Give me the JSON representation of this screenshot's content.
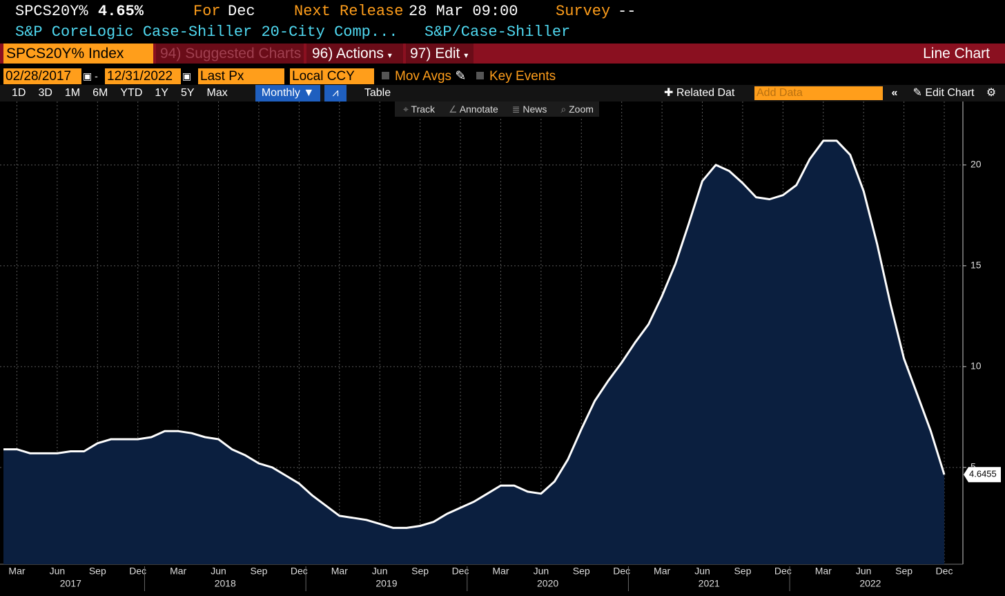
{
  "header": {
    "ticker": "SPCS20Y%",
    "last": "4.65%",
    "for_label": "For",
    "for_value": "Dec",
    "next_label": "Next Release",
    "next_value": "28 Mar 09:00",
    "survey_label": "Survey",
    "survey_value": "--",
    "name": "S&P CoreLogic Case-Shiller 20-City Comp...",
    "source": "S&P/Case-Shiller"
  },
  "menu": {
    "security": "SPCS20Y% Index",
    "items": [
      {
        "num": "94)",
        "label": "Suggested Charts"
      },
      {
        "num": "96)",
        "label": "Actions"
      },
      {
        "num": "97)",
        "label": "Edit"
      }
    ],
    "chart_type": "Line Chart"
  },
  "controls": {
    "start_date": "02/28/2017",
    "end_date": "12/31/2022",
    "field": "Last Px",
    "currency": "Local CCY",
    "mov_avgs": "Mov Avgs",
    "key_events": "Key Events"
  },
  "periods": [
    "1D",
    "3D",
    "1M",
    "6M",
    "YTD",
    "1Y",
    "5Y",
    "Max"
  ],
  "frequency": "Monthly",
  "table": "Table",
  "related": "Related Dat",
  "add_data": "Add Data",
  "edit_chart": "Edit Chart",
  "tools": [
    "Track",
    "Annotate",
    "News",
    "Zoom"
  ],
  "chart_data": {
    "type": "line",
    "categories": [
      "2017-02",
      "2017-03",
      "2017-04",
      "2017-05",
      "2017-06",
      "2017-07",
      "2017-08",
      "2017-09",
      "2017-10",
      "2017-11",
      "2017-12",
      "2018-01",
      "2018-02",
      "2018-03",
      "2018-04",
      "2018-05",
      "2018-06",
      "2018-07",
      "2018-08",
      "2018-09",
      "2018-10",
      "2018-11",
      "2018-12",
      "2019-01",
      "2019-02",
      "2019-03",
      "2019-04",
      "2019-05",
      "2019-06",
      "2019-07",
      "2019-08",
      "2019-09",
      "2019-10",
      "2019-11",
      "2019-12",
      "2020-01",
      "2020-02",
      "2020-03",
      "2020-04",
      "2020-05",
      "2020-06",
      "2020-07",
      "2020-08",
      "2020-09",
      "2020-10",
      "2020-11",
      "2020-12",
      "2021-01",
      "2021-02",
      "2021-03",
      "2021-04",
      "2021-05",
      "2021-06",
      "2021-07",
      "2021-08",
      "2021-09",
      "2021-10",
      "2021-11",
      "2021-12",
      "2022-01",
      "2022-02",
      "2022-03",
      "2022-04",
      "2022-05",
      "2022-06",
      "2022-07",
      "2022-08",
      "2022-09",
      "2022-10",
      "2022-11",
      "2022-12"
    ],
    "values": [
      5.9,
      5.9,
      5.7,
      5.7,
      5.7,
      5.8,
      5.8,
      6.2,
      6.4,
      6.4,
      6.4,
      6.5,
      6.8,
      6.8,
      6.7,
      6.5,
      6.4,
      5.9,
      5.6,
      5.2,
      5.0,
      4.6,
      4.2,
      3.6,
      3.1,
      2.6,
      2.5,
      2.4,
      2.2,
      2.0,
      2.0,
      2.1,
      2.3,
      2.7,
      3.0,
      3.3,
      3.7,
      4.1,
      4.1,
      3.8,
      3.7,
      4.3,
      5.4,
      6.9,
      8.3,
      9.3,
      10.2,
      11.2,
      12.1,
      13.5,
      15.1,
      17.1,
      19.2,
      20.0,
      19.7,
      19.1,
      18.4,
      18.3,
      18.5,
      19.0,
      20.3,
      21.2,
      21.2,
      20.5,
      18.7,
      16.1,
      13.1,
      10.4,
      8.6,
      6.8,
      4.6455
    ],
    "color": "#ffffff",
    "fill": "#0b1f3f",
    "ylim": [
      0.2,
      22.7
    ],
    "yticks": [
      5,
      10,
      15,
      20
    ],
    "xticks": [
      {
        "value": "2017-03",
        "label": "Mar"
      },
      {
        "value": "2017-06",
        "label": "Jun"
      },
      {
        "value": "2017-09",
        "label": "Sep"
      },
      {
        "value": "2017-12",
        "label": "Dec"
      },
      {
        "value": "2018-03",
        "label": "Mar"
      },
      {
        "value": "2018-06",
        "label": "Jun"
      },
      {
        "value": "2018-09",
        "label": "Sep"
      },
      {
        "value": "2018-12",
        "label": "Dec"
      },
      {
        "value": "2019-03",
        "label": "Mar"
      },
      {
        "value": "2019-06",
        "label": "Jun"
      },
      {
        "value": "2019-09",
        "label": "Sep"
      },
      {
        "value": "2019-12",
        "label": "Dec"
      },
      {
        "value": "2020-03",
        "label": "Mar"
      },
      {
        "value": "2020-06",
        "label": "Jun"
      },
      {
        "value": "2020-09",
        "label": "Sep"
      },
      {
        "value": "2020-12",
        "label": "Dec"
      },
      {
        "value": "2021-03",
        "label": "Mar"
      },
      {
        "value": "2021-06",
        "label": "Jun"
      },
      {
        "value": "2021-09",
        "label": "Sep"
      },
      {
        "value": "2021-12",
        "label": "Dec"
      },
      {
        "value": "2022-03",
        "label": "Mar"
      },
      {
        "value": "2022-06",
        "label": "Jun"
      },
      {
        "value": "2022-09",
        "label": "Sep"
      },
      {
        "value": "2022-12",
        "label": "Dec"
      }
    ],
    "years": [
      "2017",
      "2018",
      "2019",
      "2020",
      "2021",
      "2022"
    ],
    "grid": true
  }
}
